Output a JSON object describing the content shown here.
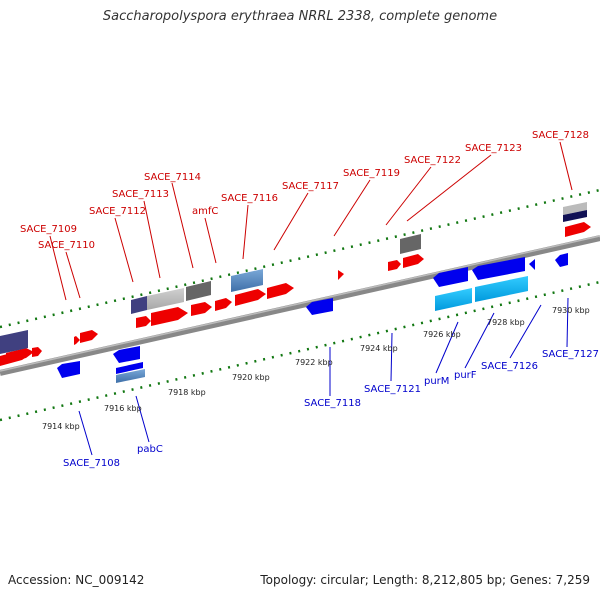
{
  "title": "Saccharopolyspora erythraea NRRL 2338, complete genome",
  "accession": "Accession: NC_009142",
  "topology": "Topology: circular; Length: 8,212,805 bp; Genes: 7,259",
  "colors": {
    "forward_gene": "#ee0000",
    "reverse_gene": "#0000ee",
    "forward_label": "#cc0000",
    "reverse_label": "#0000cc",
    "backbone": "#888888",
    "ticks": "#117711"
  },
  "scale_labels": [
    "7914 kbp",
    "7916 kbp",
    "7918 kbp",
    "7920 kbp",
    "7922 kbp",
    "7924 kbp",
    "7926 kbp",
    "7928 kbp",
    "7930 kbp"
  ],
  "forward_labels": [
    "SACE_7109",
    "SACE_7110",
    "SACE_7112",
    "SACE_7113",
    "SACE_7114",
    "amfC",
    "SACE_7116",
    "SACE_7117",
    "SACE_7119",
    "SACE_7122",
    "SACE_7123",
    "SACE_7128"
  ],
  "reverse_labels": [
    "SACE_7108",
    "pabC",
    "SACE_7118",
    "SACE_7121",
    "purM",
    "purF",
    "SACE_7126",
    "SACE_7127"
  ]
}
